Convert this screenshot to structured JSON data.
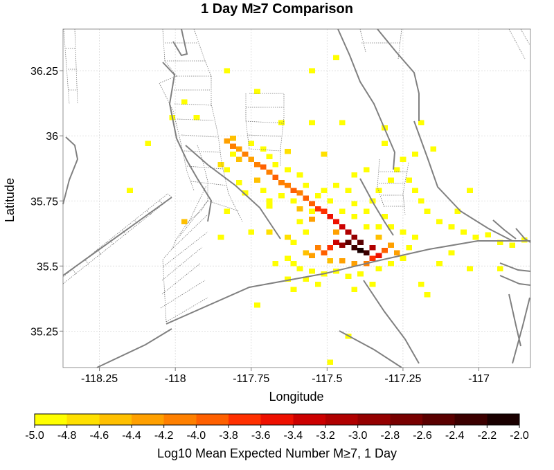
{
  "chart_data": {
    "type": "heatmap",
    "title": "1 Day M≥7 Comparison",
    "xlabel": "Longitude",
    "ylabel": "Latitude",
    "xlim": [
      -118.37,
      -116.83
    ],
    "ylim": [
      35.11,
      36.41
    ],
    "xticks": [
      -118.25,
      -118,
      -117.75,
      -117.5,
      -117.25,
      -117
    ],
    "xtick_labels": [
      "-118.25",
      "-118",
      "-117.75",
      "-117.5",
      "-117.25",
      "-117"
    ],
    "yticks": [
      35.25,
      35.5,
      35.75,
      36,
      36.25
    ],
    "ytick_labels": [
      "35.25",
      "35.5",
      "35.75",
      "36",
      "36.25"
    ],
    "grid": true,
    "colorbar": {
      "label": "Log10 Mean Expected Number M≥7, 1 Day",
      "ticks": [
        "-5.0",
        "-4.8",
        "-4.6",
        "-4.4",
        "-4.2",
        "-4.0",
        "-3.8",
        "-3.6",
        "-3.4",
        "-3.2",
        "-3.0",
        "-2.8",
        "-2.6",
        "-2.4",
        "-2.2",
        "-2.0"
      ],
      "colors": [
        "#ffff00",
        "#ffe000",
        "#ffc000",
        "#ffa000",
        "#ff8000",
        "#ff6000",
        "#ff3000",
        "#ee1000",
        "#cc0000",
        "#b00000",
        "#940000",
        "#780000",
        "#5a0000",
        "#3c0000",
        "#1a0000"
      ]
    },
    "cell_size_deg": 0.02,
    "cells": [
      [
        -117.97,
        35.67,
        2
      ],
      [
        -117.69,
        35.63,
        1
      ],
      [
        -117.51,
        35.93,
        1
      ],
      [
        -117.63,
        35.94,
        1
      ],
      [
        -117.63,
        35.61,
        1
      ],
      [
        -117.83,
        35.98,
        3
      ],
      [
        -117.81,
        35.96,
        4
      ],
      [
        -117.79,
        35.95,
        3
      ],
      [
        -117.77,
        35.93,
        4
      ],
      [
        -117.75,
        35.91,
        3
      ],
      [
        -117.73,
        35.89,
        4
      ],
      [
        -117.71,
        35.88,
        5
      ],
      [
        -117.69,
        35.86,
        4
      ],
      [
        -117.67,
        35.84,
        5
      ],
      [
        -117.65,
        35.82,
        4
      ],
      [
        -117.63,
        35.81,
        4
      ],
      [
        -117.61,
        35.79,
        5
      ],
      [
        -117.59,
        35.78,
        4
      ],
      [
        -117.57,
        35.76,
        5
      ],
      [
        -117.55,
        35.74,
        5
      ],
      [
        -117.53,
        35.72,
        6
      ],
      [
        -117.51,
        35.71,
        6
      ],
      [
        -117.49,
        35.69,
        7
      ],
      [
        -117.47,
        35.67,
        7
      ],
      [
        -117.45,
        35.65,
        8
      ],
      [
        -117.43,
        35.63,
        9
      ],
      [
        -117.41,
        35.61,
        10
      ],
      [
        -117.39,
        35.59,
        12
      ],
      [
        -117.41,
        35.57,
        13
      ],
      [
        -117.39,
        35.56,
        14
      ],
      [
        -117.37,
        35.55,
        13
      ],
      [
        -117.43,
        35.59,
        12
      ],
      [
        -117.45,
        35.58,
        10
      ],
      [
        -117.47,
        35.59,
        8
      ],
      [
        -117.35,
        35.57,
        9
      ],
      [
        -117.33,
        35.54,
        7
      ],
      [
        -117.35,
        35.53,
        6
      ],
      [
        -117.49,
        35.57,
        6
      ],
      [
        -117.51,
        35.55,
        5
      ],
      [
        -117.53,
        35.57,
        4
      ],
      [
        -117.55,
        35.54,
        3
      ],
      [
        -117.31,
        35.56,
        5
      ],
      [
        -117.29,
        35.58,
        3
      ],
      [
        -117.27,
        35.55,
        3
      ],
      [
        -117.37,
        35.51,
        4
      ],
      [
        -117.41,
        35.51,
        3
      ],
      [
        -117.45,
        35.52,
        3
      ],
      [
        -117.49,
        35.52,
        2
      ],
      [
        -117.33,
        35.61,
        2
      ],
      [
        -117.47,
        35.63,
        3
      ],
      [
        -117.55,
        35.68,
        3
      ],
      [
        -117.59,
        35.72,
        2
      ],
      [
        -117.81,
        35.99,
        2
      ],
      [
        -117.79,
        35.91,
        2
      ],
      [
        -117.73,
        35.83,
        2
      ],
      [
        -117.85,
        35.89,
        1
      ],
      [
        -117.57,
        35.55,
        2
      ],
      [
        -117.57,
        35.63,
        0
      ],
      [
        -117.59,
        35.67,
        0
      ],
      [
        -117.61,
        35.59,
        0
      ],
      [
        -117.63,
        35.53,
        0
      ],
      [
        -117.61,
        35.51,
        0
      ],
      [
        -117.59,
        35.49,
        0
      ],
      [
        -117.55,
        35.48,
        0
      ],
      [
        -117.51,
        35.47,
        0
      ],
      [
        -117.47,
        35.48,
        0
      ],
      [
        -117.43,
        35.46,
        0
      ],
      [
        -117.39,
        35.47,
        0
      ],
      [
        -117.33,
        35.49,
        0
      ],
      [
        -117.29,
        35.51,
        0
      ],
      [
        -117.25,
        35.53,
        0
      ],
      [
        -117.23,
        35.57,
        0
      ],
      [
        -117.21,
        35.61,
        0
      ],
      [
        -117.25,
        35.63,
        0
      ],
      [
        -117.29,
        35.65,
        0
      ],
      [
        -117.31,
        35.69,
        0
      ],
      [
        -117.33,
        35.65,
        0
      ],
      [
        -117.37,
        35.65,
        0
      ],
      [
        -117.41,
        35.69,
        0
      ],
      [
        -117.45,
        35.71,
        0
      ],
      [
        -117.49,
        35.75,
        0
      ],
      [
        -117.53,
        35.77,
        0
      ],
      [
        -117.57,
        35.81,
        0
      ],
      [
        -117.59,
        35.85,
        0
      ],
      [
        -117.63,
        35.87,
        0
      ],
      [
        -117.67,
        35.89,
        0
      ],
      [
        -117.69,
        35.92,
        0
      ],
      [
        -117.71,
        35.95,
        0
      ],
      [
        -117.75,
        35.97,
        0
      ],
      [
        -117.81,
        35.93,
        0
      ],
      [
        -117.83,
        35.87,
        0
      ],
      [
        -117.79,
        35.82,
        0
      ],
      [
        -117.77,
        35.78,
        0
      ],
      [
        -117.71,
        35.79,
        0
      ],
      [
        -117.69,
        35.75,
        0
      ],
      [
        -117.65,
        35.77,
        0
      ],
      [
        -117.61,
        35.75,
        0
      ],
      [
        -117.55,
        35.71,
        0
      ],
      [
        -117.51,
        35.79,
        0
      ],
      [
        -117.47,
        35.81,
        0
      ],
      [
        -117.43,
        35.79,
        0
      ],
      [
        -117.41,
        35.74,
        0
      ],
      [
        -117.37,
        35.71,
        0
      ],
      [
        -117.35,
        35.75,
        0
      ],
      [
        -117.33,
        35.79,
        0
      ],
      [
        -117.29,
        35.83,
        0
      ],
      [
        -117.27,
        35.87,
        0
      ],
      [
        -117.25,
        35.91,
        0
      ],
      [
        -117.21,
        35.93,
        0
      ],
      [
        -117.23,
        35.83,
        0
      ],
      [
        -117.21,
        35.79,
        0
      ],
      [
        -117.19,
        35.75,
        0
      ],
      [
        -117.17,
        35.71,
        0
      ],
      [
        -117.13,
        35.67,
        0
      ],
      [
        -117.09,
        35.65,
        0
      ],
      [
        -117.05,
        35.63,
        0
      ],
      [
        -117.01,
        35.61,
        0
      ],
      [
        -116.97,
        35.62,
        0
      ],
      [
        -116.93,
        35.59,
        0
      ],
      [
        -116.89,
        35.58,
        0
      ],
      [
        -116.85,
        35.6,
        0
      ],
      [
        -117.07,
        35.71,
        0
      ],
      [
        -117.03,
        35.79,
        0
      ],
      [
        -117.15,
        35.95,
        0
      ],
      [
        -117.19,
        36.05,
        0
      ],
      [
        -117.31,
        36.03,
        0
      ],
      [
        -117.73,
        36.17,
        0
      ],
      [
        -117.55,
        36.25,
        0
      ],
      [
        -117.47,
        36.3,
        0
      ],
      [
        -117.93,
        36.07,
        0
      ],
      [
        -117.83,
        36.25,
        0
      ],
      [
        -118.01,
        36.07,
        0
      ],
      [
        -117.97,
        36.13,
        0
      ],
      [
        -118.09,
        35.97,
        0
      ],
      [
        -118.15,
        35.79,
        0
      ],
      [
        -117.65,
        36.05,
        0
      ],
      [
        -117.55,
        36.05,
        0
      ],
      [
        -117.45,
        36.05,
        0
      ],
      [
        -117.41,
        35.85,
        0
      ],
      [
        -117.37,
        35.87,
        0
      ],
      [
        -117.31,
        35.97,
        0
      ],
      [
        -117.35,
        35.43,
        0
      ],
      [
        -117.41,
        35.41,
        0
      ],
      [
        -117.43,
        35.23,
        0
      ],
      [
        -117.49,
        35.13,
        0
      ],
      [
        -117.61,
        35.41,
        0
      ],
      [
        -117.73,
        35.35,
        0
      ],
      [
        -117.53,
        35.43,
        0
      ],
      [
        -117.17,
        35.39,
        0
      ],
      [
        -117.19,
        35.43,
        0
      ],
      [
        -117.03,
        35.49,
        0
      ],
      [
        -116.93,
        35.49,
        0
      ],
      [
        -117.13,
        35.51,
        0
      ],
      [
        -117.09,
        35.55,
        0
      ],
      [
        -117.69,
        35.73,
        0
      ],
      [
        -117.83,
        35.71,
        0
      ],
      [
        -117.75,
        35.63,
        0
      ],
      [
        -117.85,
        35.61,
        0
      ],
      [
        -117.67,
        35.51,
        0
      ],
      [
        -117.63,
        35.45,
        0
      ],
      [
        -117.57,
        35.45,
        0
      ]
    ]
  }
}
